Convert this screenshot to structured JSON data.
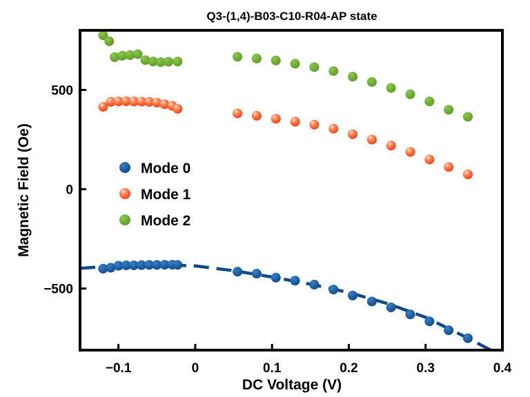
{
  "chart_data": {
    "type": "scatter",
    "title": "Q3-(1,4)-B03-C10-R04-AP state",
    "xlabel": "DC Voltage (V)",
    "ylabel": "Magnetic Field (Oe)",
    "xlim": [
      -0.15,
      0.4
    ],
    "ylim": [
      -810,
      800
    ],
    "xticks": [
      -0.1,
      0,
      0.1,
      0.2,
      0.3,
      0.4
    ],
    "xtick_labels": [
      "−0.1",
      "0",
      "0.1",
      "0.2",
      "0.3",
      "0.4"
    ],
    "yticks": [
      -500,
      0,
      500
    ],
    "ytick_labels": [
      "−500",
      "0",
      "500"
    ],
    "grid": false,
    "legend_position": "center-left",
    "series": [
      {
        "name": "Mode 0",
        "color": "#0d4a8a",
        "x": [
          -0.12,
          -0.11,
          -0.1,
          -0.09,
          -0.08,
          -0.07,
          -0.06,
          -0.05,
          -0.04,
          -0.03,
          -0.023,
          0.055,
          0.08,
          0.105,
          0.13,
          0.155,
          0.18,
          0.205,
          0.23,
          0.255,
          0.28,
          0.305,
          0.33,
          0.355
        ],
        "y": [
          -400,
          -395,
          -385,
          -383,
          -383,
          -382,
          -381,
          -381,
          -380,
          -380,
          -381,
          -415,
          -425,
          -445,
          -460,
          -480,
          -505,
          -535,
          -565,
          -595,
          -630,
          -665,
          -710,
          -750
        ]
      },
      {
        "name": "Mode 1",
        "color": "#ff4a1c",
        "x": [
          -0.12,
          -0.11,
          -0.1,
          -0.09,
          -0.08,
          -0.07,
          -0.06,
          -0.05,
          -0.04,
          -0.03,
          -0.023,
          0.055,
          0.08,
          0.105,
          0.13,
          0.155,
          0.18,
          0.205,
          0.23,
          0.255,
          0.28,
          0.305,
          0.33,
          0.355
        ],
        "y": [
          415,
          440,
          442,
          443,
          442,
          441,
          440,
          436,
          428,
          420,
          405,
          382,
          370,
          355,
          340,
          325,
          305,
          277,
          250,
          220,
          188,
          150,
          112,
          75
        ]
      },
      {
        "name": "Mode 2",
        "color": "#6aa32a",
        "x": [
          -0.12,
          -0.112,
          -0.105,
          -0.095,
          -0.085,
          -0.075,
          -0.065,
          -0.055,
          -0.045,
          -0.035,
          -0.023,
          0.055,
          0.08,
          0.105,
          0.13,
          0.155,
          0.18,
          0.205,
          0.23,
          0.255,
          0.28,
          0.305,
          0.33,
          0.355
        ],
        "y": [
          775,
          745,
          665,
          672,
          675,
          680,
          650,
          643,
          640,
          642,
          643,
          667,
          658,
          648,
          632,
          615,
          595,
          567,
          540,
          510,
          478,
          442,
          400,
          365
        ]
      }
    ],
    "fit_line": {
      "series": "Mode 0",
      "style": "dashed",
      "color": "#0d4a8a",
      "x": [
        -0.15,
        -0.1,
        -0.05,
        0.0,
        0.05,
        0.1,
        0.15,
        0.2,
        0.25,
        0.3,
        0.35,
        0.385
      ],
      "y": [
        -398,
        -385,
        -379,
        -386,
        -410,
        -442,
        -478,
        -520,
        -575,
        -645,
        -740,
        -810
      ]
    }
  }
}
